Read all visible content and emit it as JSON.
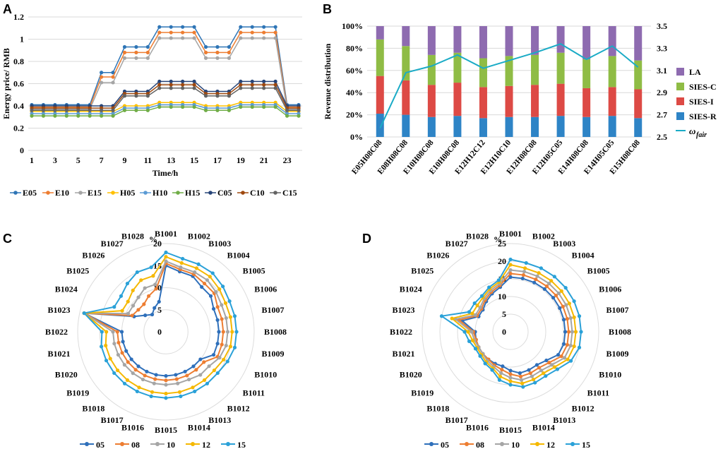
{
  "panels": {
    "a": "A",
    "b": "B",
    "c": "C",
    "d": "D"
  },
  "colors": {
    "E05": "#2e75b6",
    "E10": "#ed7d31",
    "E15": "#a5a5a5",
    "H05": "#ffc000",
    "H10": "#5b9bd5",
    "H15": "#70ad47",
    "C05": "#264478",
    "C10": "#9e480e",
    "C15": "#636363",
    "LA": "#8e6bb0",
    "SIES-C": "#8fbc45",
    "SIES-I": "#dd4a45",
    "SIES-R": "#2e84c6",
    "omega": "#1aabc6",
    "r05": "#2e6fba",
    "r08": "#ed7d31",
    "r10": "#a5a5a5",
    "r12": "#f5b800",
    "r15": "#2aa1d8"
  },
  "chart_data": [
    {
      "id": "A",
      "type": "line",
      "xlabel": "Time/h",
      "ylabel": "Energy price/ RMB",
      "xlim": [
        1,
        24
      ],
      "ylim": [
        0,
        1.2
      ],
      "xticks": [
        1,
        3,
        5,
        7,
        9,
        11,
        13,
        15,
        17,
        19,
        21,
        23
      ],
      "ytick_labels": [
        "0",
        "0.2",
        "0.4",
        "0.6",
        "0.8",
        "1",
        "1.2"
      ],
      "x": [
        1,
        2,
        3,
        4,
        5,
        6,
        7,
        8,
        9,
        10,
        11,
        12,
        13,
        14,
        15,
        16,
        17,
        18,
        19,
        20,
        21,
        22,
        23,
        24
      ],
      "series": [
        {
          "name": "E05",
          "color_key": "E05",
          "values": [
            0.41,
            0.41,
            0.41,
            0.41,
            0.41,
            0.41,
            0.7,
            0.7,
            0.93,
            0.93,
            0.93,
            1.11,
            1.11,
            1.11,
            1.11,
            0.93,
            0.93,
            0.93,
            1.11,
            1.11,
            1.11,
            1.11,
            0.41,
            0.41
          ]
        },
        {
          "name": "E10",
          "color_key": "E10",
          "values": [
            0.39,
            0.39,
            0.39,
            0.39,
            0.39,
            0.39,
            0.66,
            0.66,
            0.88,
            0.88,
            0.88,
            1.06,
            1.06,
            1.06,
            1.06,
            0.88,
            0.88,
            0.88,
            1.06,
            1.06,
            1.06,
            1.06,
            0.39,
            0.39
          ]
        },
        {
          "name": "E15",
          "color_key": "E15",
          "values": [
            0.37,
            0.37,
            0.37,
            0.37,
            0.37,
            0.37,
            0.61,
            0.61,
            0.83,
            0.83,
            0.83,
            1.01,
            1.01,
            1.01,
            1.01,
            0.83,
            0.83,
            0.83,
            1.01,
            1.01,
            1.01,
            1.01,
            0.37,
            0.37
          ]
        },
        {
          "name": "H05",
          "color_key": "H05",
          "values": [
            0.35,
            0.35,
            0.35,
            0.35,
            0.35,
            0.35,
            0.35,
            0.35,
            0.4,
            0.4,
            0.4,
            0.43,
            0.43,
            0.43,
            0.43,
            0.4,
            0.4,
            0.4,
            0.43,
            0.43,
            0.43,
            0.43,
            0.35,
            0.35
          ]
        },
        {
          "name": "H10",
          "color_key": "H10",
          "values": [
            0.33,
            0.33,
            0.33,
            0.33,
            0.33,
            0.33,
            0.33,
            0.33,
            0.38,
            0.38,
            0.38,
            0.41,
            0.41,
            0.41,
            0.41,
            0.38,
            0.38,
            0.38,
            0.41,
            0.41,
            0.41,
            0.41,
            0.33,
            0.33
          ]
        },
        {
          "name": "H15",
          "color_key": "H15",
          "values": [
            0.31,
            0.31,
            0.31,
            0.31,
            0.31,
            0.31,
            0.31,
            0.31,
            0.36,
            0.36,
            0.36,
            0.39,
            0.39,
            0.39,
            0.39,
            0.36,
            0.36,
            0.36,
            0.39,
            0.39,
            0.39,
            0.39,
            0.31,
            0.31
          ]
        },
        {
          "name": "C05",
          "color_key": "C05",
          "values": [
            0.4,
            0.4,
            0.4,
            0.4,
            0.4,
            0.4,
            0.4,
            0.4,
            0.53,
            0.53,
            0.53,
            0.62,
            0.62,
            0.62,
            0.62,
            0.53,
            0.53,
            0.53,
            0.62,
            0.62,
            0.62,
            0.62,
            0.4,
            0.4
          ]
        },
        {
          "name": "C10",
          "color_key": "C10",
          "values": [
            0.38,
            0.38,
            0.38,
            0.38,
            0.38,
            0.38,
            0.38,
            0.38,
            0.51,
            0.51,
            0.51,
            0.59,
            0.59,
            0.59,
            0.59,
            0.51,
            0.51,
            0.51,
            0.59,
            0.59,
            0.59,
            0.59,
            0.38,
            0.38
          ]
        },
        {
          "name": "C15",
          "color_key": "C15",
          "values": [
            0.36,
            0.36,
            0.36,
            0.36,
            0.36,
            0.36,
            0.36,
            0.36,
            0.49,
            0.49,
            0.49,
            0.56,
            0.56,
            0.56,
            0.56,
            0.49,
            0.49,
            0.49,
            0.56,
            0.56,
            0.56,
            0.56,
            0.36,
            0.36
          ]
        }
      ],
      "legend": [
        "E05",
        "E10",
        "E15",
        "H05",
        "H10",
        "H15",
        "C05",
        "C10",
        "C15"
      ],
      "legend_position": "bottom"
    },
    {
      "id": "B",
      "type": "bar",
      "stacked": true,
      "ylabel": "Revenue distribution",
      "ylim": [
        0,
        100
      ],
      "ytick_labels": [
        "0%",
        "20%",
        "40%",
        "60%",
        "80%",
        "100%"
      ],
      "y2lim": [
        2.5,
        3.5
      ],
      "y2tick_labels": [
        "2.5",
        "2.7",
        "2.9",
        "3.1",
        "3.3",
        "3.5"
      ],
      "categories": [
        "E05H08C08",
        "E08H08C08",
        "E10H08C08",
        "E10H08C08",
        "E12H12C12",
        "E12H10C10",
        "E12H08C08",
        "E12H05C05",
        "E14H08C08",
        "E14H05C05",
        "E15H08C08"
      ],
      "series": [
        {
          "name": "SIES-R",
          "color_key": "SIES-R",
          "values": [
            21,
            20,
            18,
            19,
            17,
            18,
            18,
            19,
            18,
            19,
            17
          ]
        },
        {
          "name": "SIES-I",
          "color_key": "SIES-I",
          "values": [
            34,
            31,
            29,
            30,
            28,
            28,
            29,
            29,
            26,
            26,
            26
          ]
        },
        {
          "name": "SIES-C",
          "color_key": "SIES-C",
          "values": [
            33,
            31,
            27,
            27,
            26,
            27,
            27,
            28,
            26,
            28,
            26
          ]
        },
        {
          "name": "LA",
          "color_key": "LA",
          "values": [
            12,
            18,
            26,
            24,
            29,
            27,
            26,
            24,
            30,
            27,
            31
          ]
        }
      ],
      "line": {
        "name": "ω",
        "subscript": "fair",
        "color_key": "omega",
        "axis": "right",
        "values": [
          2.58,
          3.08,
          3.14,
          3.24,
          3.12,
          3.19,
          3.26,
          3.34,
          3.2,
          3.32,
          3.13
        ]
      },
      "legend": [
        "LA",
        "SIES-C",
        "SIES-I",
        "SIES-R"
      ],
      "legend_position": "right"
    },
    {
      "id": "C",
      "type": "radar",
      "unit": "%",
      "rmax": 20,
      "rtick_labels": [
        "0",
        "5",
        "10",
        "15",
        "20"
      ],
      "categories": [
        "B1001",
        "B1002",
        "B1003",
        "B1004",
        "B1005",
        "B1006",
        "B1007",
        "B1008",
        "B1009",
        "B1010",
        "B1011",
        "B1012",
        "B1013",
        "B1014",
        "B1015",
        "B1016",
        "B1017",
        "B1018",
        "B1019",
        "B1020",
        "B1021",
        "B1022",
        "B1023",
        "B1024",
        "B1025",
        "B1026",
        "B1027",
        "B1028"
      ],
      "series": [
        {
          "name": "05",
          "color_key": "r05",
          "values": [
            15,
            14,
            14,
            13,
            13,
            12,
            12,
            12,
            12,
            12,
            10,
            10,
            10,
            10,
            10,
            10,
            10,
            10,
            10,
            10,
            10,
            10,
            19,
            8,
            6,
            5,
            6,
            7
          ]
        },
        {
          "name": "08",
          "color_key": "r08",
          "values": [
            15.5,
            14.5,
            14.5,
            14,
            14,
            13,
            13,
            13,
            13,
            13,
            11,
            11,
            11,
            11,
            11,
            11,
            11,
            11,
            11,
            11,
            11,
            11,
            19,
            8.5,
            8,
            8,
            9,
            10
          ]
        },
        {
          "name": "10",
          "color_key": "r10",
          "values": [
            16,
            15,
            15,
            15,
            14.5,
            14,
            14,
            14,
            14,
            13.5,
            12.5,
            12.5,
            12,
            12,
            12,
            12,
            12,
            12,
            12,
            12,
            12,
            12,
            19,
            9.5,
            9.5,
            10,
            11,
            11
          ]
        },
        {
          "name": "12",
          "color_key": "r12",
          "values": [
            17,
            16,
            16,
            16,
            15.5,
            15,
            15,
            15,
            15,
            14.5,
            14,
            14,
            14,
            14,
            14,
            14,
            14,
            14,
            14,
            14,
            14,
            13.5,
            19,
            11,
            11,
            12,
            13,
            13
          ]
        },
        {
          "name": "15",
          "color_key": "r15",
          "values": [
            18,
            17,
            17,
            17,
            16.5,
            16,
            16,
            16,
            16,
            15.5,
            15,
            15,
            15,
            15,
            15,
            15,
            15,
            15,
            15,
            15,
            15,
            14.5,
            19,
            13,
            13,
            14,
            15,
            15
          ]
        }
      ],
      "legend": [
        "05",
        "08",
        "10",
        "12",
        "15"
      ],
      "legend_position": "bottom"
    },
    {
      "id": "D",
      "type": "radar",
      "unit": "%",
      "rmax": 25,
      "rtick_labels": [
        "0",
        "5",
        "10",
        "15",
        "20",
        "25"
      ],
      "categories": [
        "B1001",
        "B1002",
        "B1003",
        "B1004",
        "B1005",
        "B1006",
        "B1007",
        "B1008",
        "B1009",
        "B1010",
        "B1011",
        "B1012",
        "B1013",
        "B1014",
        "B1015",
        "B1016",
        "B1017",
        "B1018",
        "B1019",
        "B1020",
        "B1021",
        "B1022",
        "B1023",
        "B1024",
        "B1025",
        "B1026",
        "B1027",
        "B1028"
      ],
      "series": [
        {
          "name": "05",
          "color_key": "r05",
          "values": [
            15.5,
            15.5,
            15.5,
            15.5,
            15.5,
            15.5,
            15.5,
            15.5,
            15.5,
            15,
            13,
            12,
            12,
            12,
            11,
            10,
            10,
            10,
            10,
            10,
            10,
            10,
            14,
            10,
            10,
            11,
            12,
            13
          ]
        },
        {
          "name": "08",
          "color_key": "r08",
          "values": [
            16.5,
            16.5,
            16.5,
            16.5,
            16.5,
            16.5,
            16.5,
            16.5,
            16.5,
            16,
            14,
            13,
            13,
            13,
            12,
            11,
            10.5,
            10,
            10,
            10,
            10,
            10.5,
            15,
            10.5,
            10.5,
            11.5,
            12.5,
            13.5
          ]
        },
        {
          "name": "10",
          "color_key": "r10",
          "values": [
            17.5,
            17.5,
            17.5,
            17.5,
            17.5,
            17.5,
            17.5,
            17.5,
            17.5,
            17,
            15,
            14,
            14,
            14,
            13,
            12,
            11,
            10.5,
            10,
            10,
            10.5,
            11,
            16,
            11,
            11,
            12,
            13,
            14
          ]
        },
        {
          "name": "12",
          "color_key": "r12",
          "values": [
            19,
            18.5,
            18.5,
            18.5,
            18.5,
            18.5,
            18.5,
            18.5,
            18.5,
            18,
            16,
            15,
            15,
            15,
            14,
            13,
            11.5,
            11,
            10.5,
            10.5,
            11,
            12,
            17,
            12,
            12,
            12.5,
            13.5,
            14.5
          ]
        },
        {
          "name": "15",
          "color_key": "r15",
          "values": [
            20.5,
            20,
            20,
            20,
            20,
            20,
            20,
            20,
            20,
            19,
            17,
            16,
            16,
            16,
            15,
            14,
            12,
            11.5,
            11,
            11,
            12,
            13,
            20,
            13,
            13,
            13,
            14,
            15
          ]
        }
      ],
      "legend": [
        "05",
        "08",
        "10",
        "12",
        "15"
      ],
      "legend_position": "bottom"
    }
  ]
}
